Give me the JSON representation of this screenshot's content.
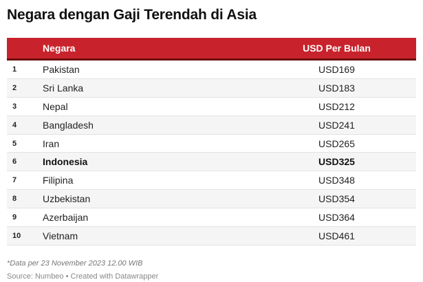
{
  "title": "Negara dengan Gaji Terendah di Asia",
  "chart_data": {
    "type": "table",
    "title": "Negara dengan Gaji Terendah di Asia",
    "columns": [
      "",
      "Negara",
      "USD Per Bulan"
    ],
    "rows": [
      {
        "rank": "1",
        "country": "Pakistan",
        "value": "USD169",
        "highlight": false
      },
      {
        "rank": "2",
        "country": "Sri Lanka",
        "value": "USD183",
        "highlight": false
      },
      {
        "rank": "3",
        "country": "Nepal",
        "value": "USD212",
        "highlight": false
      },
      {
        "rank": "4",
        "country": "Bangladesh",
        "value": "USD241",
        "highlight": false
      },
      {
        "rank": "5",
        "country": "Iran",
        "value": "USD265",
        "highlight": false
      },
      {
        "rank": "6",
        "country": "Indonesia",
        "value": "USD325",
        "highlight": true
      },
      {
        "rank": "7",
        "country": "Filipina",
        "value": "USD348",
        "highlight": false
      },
      {
        "rank": "8",
        "country": "Uzbekistan",
        "value": "USD354",
        "highlight": false
      },
      {
        "rank": "9",
        "country": "Azerbaijan",
        "value": "USD364",
        "highlight": false
      },
      {
        "rank": "10",
        "country": "Vietnam",
        "value": "USD461",
        "highlight": false
      }
    ]
  },
  "note": "*Data per 23 November 2023 12.00 WIB",
  "source": "Source: Numbeo • Created with Datawrapper",
  "colors": {
    "header_bg": "#c8232c",
    "header_border": "#6f0d10",
    "stripe": "#f5f5f5"
  }
}
